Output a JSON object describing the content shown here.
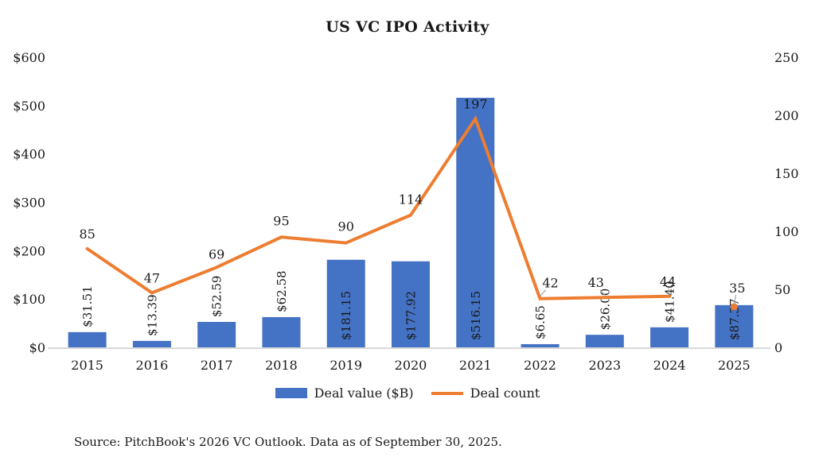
{
  "chart_data": {
    "type": "combo",
    "title": "US VC IPO Activity",
    "categories": [
      "2015",
      "2016",
      "2017",
      "2018",
      "2019",
      "2020",
      "2021",
      "2022",
      "2023",
      "2024",
      "2025"
    ],
    "series": [
      {
        "name": "Deal value ($B)",
        "type": "bar",
        "axis": "left",
        "color": "#4472C4",
        "values": [
          31.51,
          13.39,
          52.59,
          62.58,
          181.15,
          177.92,
          516.15,
          6.65,
          26.0,
          41.4,
          87.37
        ],
        "labels": [
          "$31.51",
          "$13.39",
          "$52.59",
          "$62.58",
          "$181.15",
          "$177.92",
          "$516.15",
          "$6.65",
          "$26.00",
          "$41.40",
          "$87.37"
        ],
        "label_inside": [
          false,
          false,
          false,
          false,
          true,
          true,
          true,
          false,
          false,
          false,
          true
        ]
      },
      {
        "name": "Deal count",
        "type": "line",
        "axis": "right",
        "color": "#ED7D31",
        "values": [
          85,
          47,
          69,
          95,
          90,
          114,
          197,
          42,
          43,
          44,
          35
        ],
        "labels": [
          "85",
          "47",
          "69",
          "95",
          "90",
          "114",
          "197",
          "42",
          "43",
          "44",
          "35"
        ],
        "label_dx": [
          0,
          0,
          0,
          0,
          0,
          0,
          0,
          13,
          -11,
          -2,
          4
        ],
        "label_dy": [
          -13,
          -13,
          -11,
          -15,
          -15,
          -14,
          -13,
          -14,
          -13,
          -13,
          -18
        ],
        "leader": [
          false,
          false,
          false,
          false,
          false,
          false,
          false,
          true,
          true,
          true,
          true
        ],
        "last_point_marker_only": true
      }
    ],
    "left_axis": {
      "min": 0,
      "max": 600,
      "ticks": [
        "$600",
        "$500",
        "$400",
        "$300",
        "$200",
        "$100",
        "$0"
      ]
    },
    "right_axis": {
      "min": 0,
      "max": 250,
      "ticks": [
        "250",
        "200",
        "150",
        "100",
        "50",
        "0"
      ]
    },
    "legend_position": "bottom",
    "grid": false
  },
  "source_note": "Source: PitchBook's 2026 VC Outlook. Data as of September 30, 2025.",
  "colors": {
    "bar": "#4472C4",
    "line": "#ED7D31",
    "baseline": "#D9D9D9",
    "leader": "#A6A6A6",
    "text": "#1a1a1a",
    "inside_label": "#FFFFFF"
  }
}
